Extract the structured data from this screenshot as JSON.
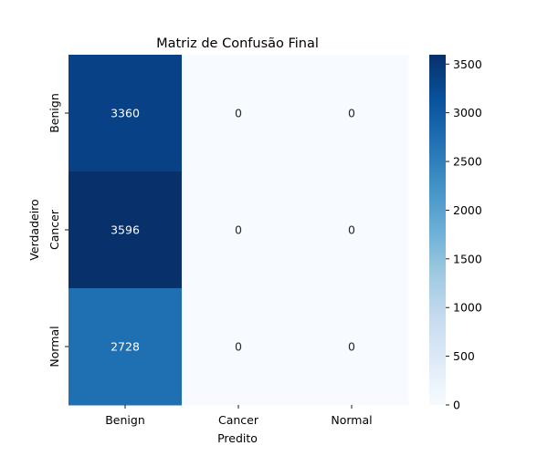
{
  "chart_data": {
    "type": "heatmap",
    "title": "Matriz de Confusão Final",
    "xlabel": "Predito",
    "ylabel": "Verdadeiro",
    "x_categories": [
      "Benign",
      "Cancer",
      "Normal"
    ],
    "y_categories": [
      "Benign",
      "Cancer",
      "Normal"
    ],
    "values": [
      [
        3360,
        0,
        0
      ],
      [
        3596,
        0,
        0
      ],
      [
        2728,
        0,
        0
      ]
    ],
    "colormap": "Blues",
    "colorbar": {
      "range": [
        0,
        3596
      ],
      "ticks": [
        0,
        500,
        1000,
        1500,
        2000,
        2500,
        3000,
        3500
      ]
    }
  }
}
